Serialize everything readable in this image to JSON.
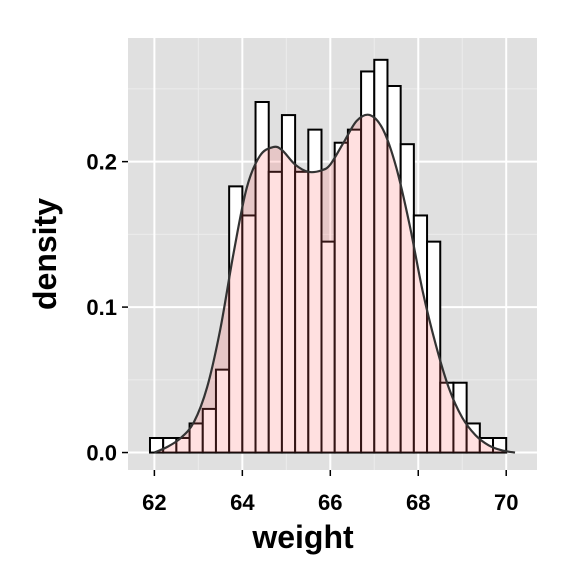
{
  "chart_data": {
    "type": "histogram-density",
    "xlabel": "weight",
    "ylabel": "density",
    "xlim": [
      61.4,
      70.7
    ],
    "ylim": [
      -0.012,
      0.285
    ],
    "x_ticks": [
      62,
      64,
      66,
      68,
      70
    ],
    "x_tick_labels": [
      "62",
      "64",
      "66",
      "68",
      "70"
    ],
    "y_ticks": [
      0.0,
      0.1,
      0.2
    ],
    "y_tick_labels": [
      "0.0",
      "0.1",
      "0.2"
    ],
    "x_minor_ticks": [
      63,
      65,
      67,
      69
    ],
    "y_minor_ticks": [
      0.05,
      0.15,
      0.25
    ],
    "grid": true,
    "histogram": {
      "bin_width": 0.3,
      "bins": [
        {
          "x0": 61.9,
          "x1": 62.2,
          "density": 0.01
        },
        {
          "x0": 62.2,
          "x1": 62.5,
          "density": 0.01
        },
        {
          "x0": 62.5,
          "x1": 62.8,
          "density": 0.01
        },
        {
          "x0": 62.8,
          "x1": 63.1,
          "density": 0.02
        },
        {
          "x0": 63.1,
          "x1": 63.4,
          "density": 0.03
        },
        {
          "x0": 63.4,
          "x1": 63.7,
          "density": 0.057
        },
        {
          "x0": 63.7,
          "x1": 64.0,
          "density": 0.183
        },
        {
          "x0": 64.0,
          "x1": 64.3,
          "density": 0.163
        },
        {
          "x0": 64.3,
          "x1": 64.6,
          "density": 0.241
        },
        {
          "x0": 64.6,
          "x1": 64.9,
          "density": 0.193
        },
        {
          "x0": 64.9,
          "x1": 65.2,
          "density": 0.232
        },
        {
          "x0": 65.2,
          "x1": 65.5,
          "density": 0.193
        },
        {
          "x0": 65.5,
          "x1": 65.8,
          "density": 0.222
        },
        {
          "x0": 65.8,
          "x1": 66.1,
          "density": 0.145
        },
        {
          "x0": 66.1,
          "x1": 66.4,
          "density": 0.213
        },
        {
          "x0": 66.4,
          "x1": 66.7,
          "density": 0.222
        },
        {
          "x0": 66.7,
          "x1": 67.0,
          "density": 0.262
        },
        {
          "x0": 67.0,
          "x1": 67.3,
          "density": 0.27
        },
        {
          "x0": 67.3,
          "x1": 67.6,
          "density": 0.252
        },
        {
          "x0": 67.6,
          "x1": 67.9,
          "density": 0.212
        },
        {
          "x0": 67.9,
          "x1": 68.2,
          "density": 0.163
        },
        {
          "x0": 68.2,
          "x1": 68.5,
          "density": 0.145
        },
        {
          "x0": 68.5,
          "x1": 68.8,
          "density": 0.048
        },
        {
          "x0": 68.8,
          "x1": 69.1,
          "density": 0.048
        },
        {
          "x0": 69.1,
          "x1": 69.4,
          "density": 0.02
        },
        {
          "x0": 69.4,
          "x1": 69.7,
          "density": 0.01
        },
        {
          "x0": 69.7,
          "x1": 70.0,
          "density": 0.01
        }
      ]
    },
    "density_curve": {
      "x": [
        62.0,
        62.3,
        62.6,
        62.9,
        63.2,
        63.5,
        63.8,
        64.1,
        64.4,
        64.7,
        64.9,
        65.2,
        65.5,
        65.8,
        66.0,
        66.3,
        66.6,
        66.9,
        67.2,
        67.5,
        67.8,
        68.1,
        68.4,
        68.7,
        69.0,
        69.3,
        69.6,
        69.9,
        70.2
      ],
      "y": [
        0.0,
        0.004,
        0.01,
        0.021,
        0.045,
        0.085,
        0.137,
        0.182,
        0.204,
        0.21,
        0.208,
        0.198,
        0.193,
        0.194,
        0.198,
        0.213,
        0.228,
        0.232,
        0.222,
        0.196,
        0.157,
        0.111,
        0.074,
        0.044,
        0.024,
        0.012,
        0.005,
        0.0015,
        0.0
      ]
    },
    "colors": {
      "panel_background": "#e0e0e0",
      "grid_major": "#ffffff",
      "grid_minor": "#ececec",
      "bar_fill": "#ffffff",
      "bar_outline": "#000000",
      "density_fill": "#ff6666",
      "density_fill_opacity": 0.2,
      "density_line": "#333333"
    }
  }
}
